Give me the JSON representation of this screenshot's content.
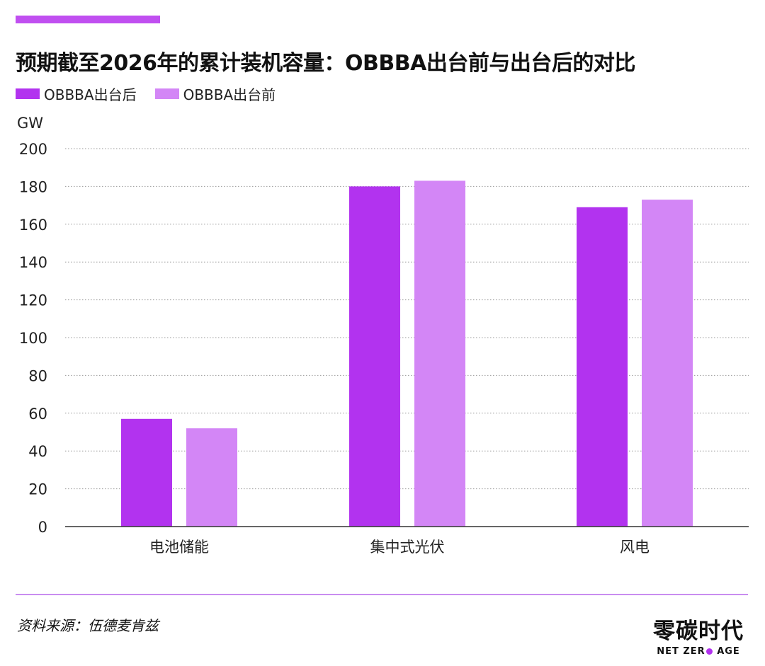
{
  "title": "预期截至2026年的累计装机容量：OBBBA出台前与出台后的对比",
  "unit_label": "GW",
  "source": "资料来源：伍德麦肯兹",
  "brand": {
    "cn": "零碳时代",
    "en_left": "NET ZER",
    "en_right": " AGE"
  },
  "colors": {
    "accent": "#c04ff0",
    "after": "#b233ef",
    "before": "#d386f6",
    "grid": "#9a9a9a",
    "rule": "#c98df0",
    "brand_dot": "#b233ef"
  },
  "chart_data": {
    "type": "bar",
    "title": "预期截至2026年的累计装机容量：OBBBA出台前与出台后的对比",
    "ylabel": "GW",
    "xlabel": "",
    "ylim": [
      0,
      200
    ],
    "yticks": [
      0,
      20,
      40,
      60,
      80,
      100,
      120,
      140,
      160,
      180,
      200
    ],
    "grid": true,
    "legend_position": "top-left",
    "categories": [
      "电池储能",
      "集中式光伏",
      "风电"
    ],
    "series": [
      {
        "name": "OBBBA出台后",
        "color": "#b233ef",
        "values": [
          57,
          180,
          169
        ]
      },
      {
        "name": "OBBBA出台前",
        "color": "#d386f6",
        "values": [
          52,
          183,
          173
        ]
      }
    ]
  }
}
